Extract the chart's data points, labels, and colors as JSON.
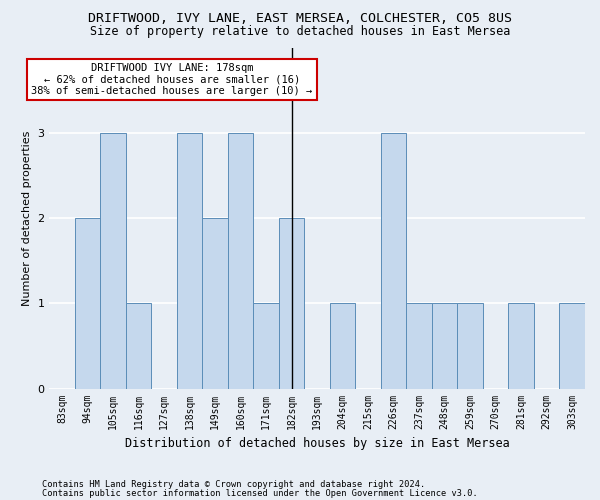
{
  "title1": "DRIFTWOOD, IVY LANE, EAST MERSEA, COLCHESTER, CO5 8US",
  "title2": "Size of property relative to detached houses in East Mersea",
  "xlabel": "Distribution of detached houses by size in East Mersea",
  "ylabel": "Number of detached properties",
  "categories": [
    "83sqm",
    "94sqm",
    "105sqm",
    "116sqm",
    "127sqm",
    "138sqm",
    "149sqm",
    "160sqm",
    "171sqm",
    "182sqm",
    "193sqm",
    "204sqm",
    "215sqm",
    "226sqm",
    "237sqm",
    "248sqm",
    "259sqm",
    "270sqm",
    "281sqm",
    "292sqm",
    "303sqm"
  ],
  "values": [
    0,
    2,
    3,
    1,
    0,
    3,
    2,
    3,
    1,
    2,
    0,
    1,
    0,
    3,
    1,
    1,
    1,
    0,
    1,
    0,
    1
  ],
  "bar_color": "#c5d8ed",
  "bar_edge_color": "#5b8db8",
  "highlight_bar_index": 9,
  "highlight_line_color": "#000000",
  "annotation_title": "DRIFTWOOD IVY LANE: 178sqm",
  "annotation_line1": "← 62% of detached houses are smaller (16)",
  "annotation_line2": "38% of semi-detached houses are larger (10) →",
  "annotation_box_color": "#ffffff",
  "annotation_box_edge": "#cc0000",
  "ylim": [
    0,
    4
  ],
  "yticks": [
    0,
    1,
    2,
    3
  ],
  "footer1": "Contains HM Land Registry data © Crown copyright and database right 2024.",
  "footer2": "Contains public sector information licensed under the Open Government Licence v3.0.",
  "bg_color": "#e8eef5",
  "plot_bg_color": "#e8eef5",
  "grid_color": "#ffffff",
  "title_fontsize": 9.5,
  "subtitle_fontsize": 8.5,
  "ylabel_fontsize": 8,
  "xlabel_fontsize": 8.5,
  "tick_fontsize": 7,
  "annotation_fontsize": 7.5,
  "footer_fontsize": 6.2
}
